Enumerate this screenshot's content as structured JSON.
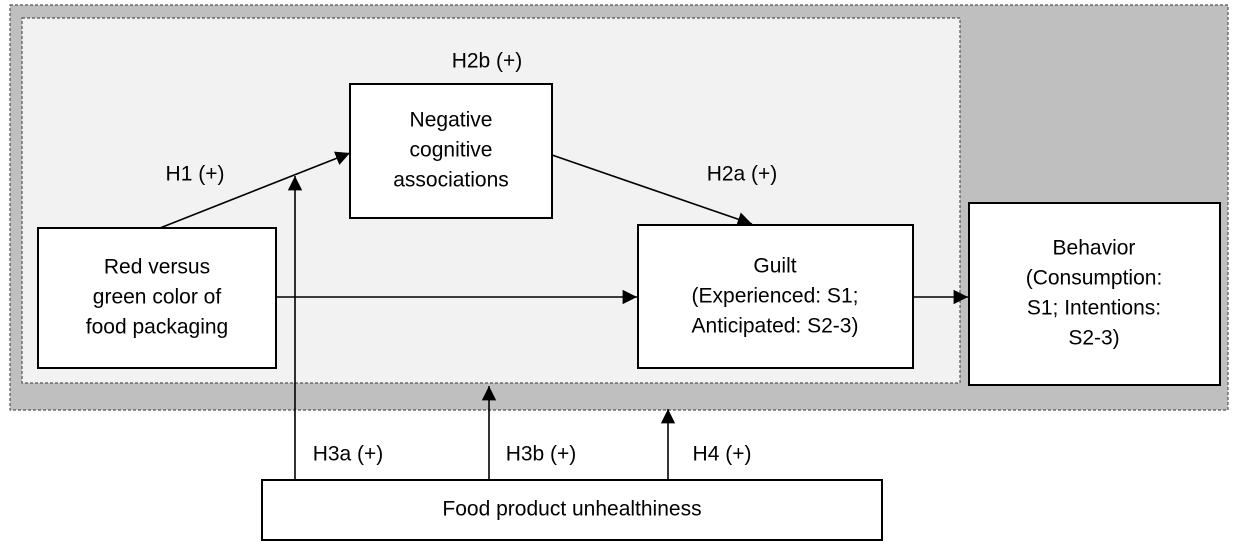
{
  "nodes": [
    {
      "lines": [
        "Negative",
        "cognitive",
        "associations"
      ]
    },
    {
      "lines": [
        "Red versus",
        "green color of",
        "food packaging"
      ]
    },
    {
      "lines": [
        "Guilt",
        "(Experienced: S1;",
        "Anticipated: S2-3)"
      ]
    },
    {
      "lines": [
        "Behavior",
        "(Consumption:",
        "S1; Intentions:",
        "S2-3)"
      ]
    },
    {
      "lines": [
        "Food product unhealthiness"
      ]
    }
  ],
  "edges": [
    {
      "label": "H1 (+)"
    },
    {
      "label": "H2a (+)"
    },
    {
      "label": "H2b (+)"
    },
    {
      "label": "H3a (+)"
    },
    {
      "label": "H3b (+)"
    },
    {
      "label": "H4 (+)"
    }
  ]
}
